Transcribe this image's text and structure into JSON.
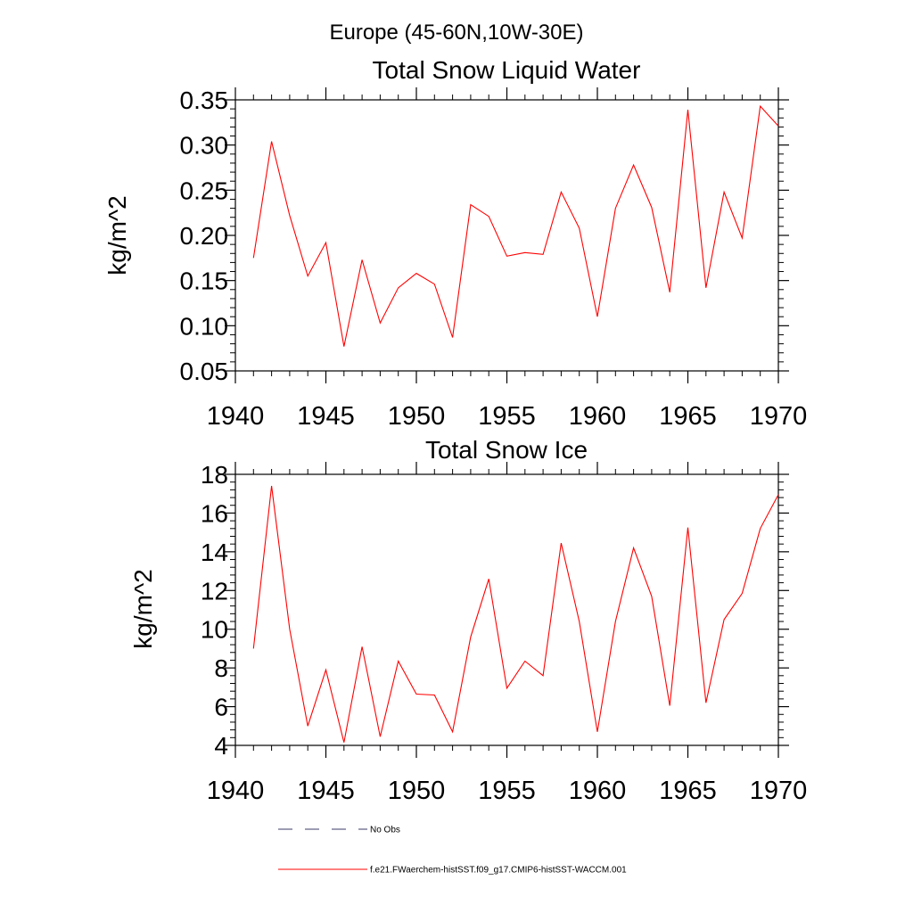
{
  "figure": {
    "title": "Europe (45-60N,10W-30E)"
  },
  "colors": {
    "series": "#ff0000",
    "obs": "#3a3a6a",
    "axis": "#000000"
  },
  "legend": {
    "items": [
      {
        "label": "No Obs",
        "style": "dashed",
        "color": "#3a3a6a"
      },
      {
        "label": "f.e21.FWaerchem-histSST.f09_g17.CMIP6-histSST-WACCM.001",
        "style": "solid",
        "color": "#ff0000"
      }
    ]
  },
  "chart_data": [
    {
      "type": "line",
      "title": "Total Snow Liquid Water",
      "xlabel": "",
      "ylabel": "kg/m^2",
      "xlim": [
        1940,
        1970
      ],
      "ylim": [
        0.05,
        0.35
      ],
      "xticks": [
        1940,
        1945,
        1950,
        1955,
        1960,
        1965,
        1970
      ],
      "yticks": [
        0.05,
        0.1,
        0.15,
        0.2,
        0.25,
        0.3,
        0.35
      ],
      "ytick_labels": [
        "0.05",
        "0.10",
        "0.15",
        "0.20",
        "0.25",
        "0.30",
        "0.35"
      ],
      "grid": false,
      "x": [
        1941,
        1942,
        1943,
        1944,
        1945,
        1946,
        1947,
        1948,
        1949,
        1950,
        1951,
        1952,
        1953,
        1954,
        1955,
        1956,
        1957,
        1958,
        1959,
        1960,
        1961,
        1962,
        1963,
        1964,
        1965,
        1966,
        1967,
        1968,
        1969,
        1970
      ],
      "series": [
        {
          "values": [
            0.175,
            0.304,
            0.222,
            0.155,
            0.192,
            0.077,
            0.173,
            0.103,
            0.142,
            0.158,
            0.146,
            0.087,
            0.234,
            0.221,
            0.177,
            0.181,
            0.179,
            0.248,
            0.208,
            0.11,
            0.23,
            0.278,
            0.231,
            0.137,
            0.339,
            0.142,
            0.248,
            0.197,
            0.343,
            0.321
          ]
        }
      ]
    },
    {
      "type": "line",
      "title": "Total Snow Ice",
      "xlabel": "",
      "ylabel": "kg/m^2",
      "xlim": [
        1940,
        1970
      ],
      "ylim": [
        4,
        18
      ],
      "xticks": [
        1940,
        1945,
        1950,
        1955,
        1960,
        1965,
        1970
      ],
      "yticks": [
        4,
        6,
        8,
        10,
        12,
        14,
        16,
        18
      ],
      "ytick_labels": [
        "4",
        "6",
        "8",
        "10",
        "12",
        "14",
        "16",
        "18"
      ],
      "grid": false,
      "x": [
        1941,
        1942,
        1943,
        1944,
        1945,
        1946,
        1947,
        1948,
        1949,
        1950,
        1951,
        1952,
        1953,
        1954,
        1955,
        1956,
        1957,
        1958,
        1959,
        1960,
        1961,
        1962,
        1963,
        1964,
        1965,
        1966,
        1967,
        1968,
        1969,
        1970
      ],
      "series": [
        {
          "values": [
            9.0,
            17.4,
            10.0,
            5.0,
            7.9,
            4.15,
            9.1,
            4.45,
            8.35,
            6.65,
            6.6,
            4.7,
            9.6,
            12.6,
            6.95,
            8.35,
            7.6,
            14.45,
            10.4,
            4.7,
            10.4,
            14.2,
            11.7,
            6.05,
            15.25,
            6.2,
            10.5,
            11.85,
            15.2,
            16.95
          ]
        }
      ]
    }
  ]
}
